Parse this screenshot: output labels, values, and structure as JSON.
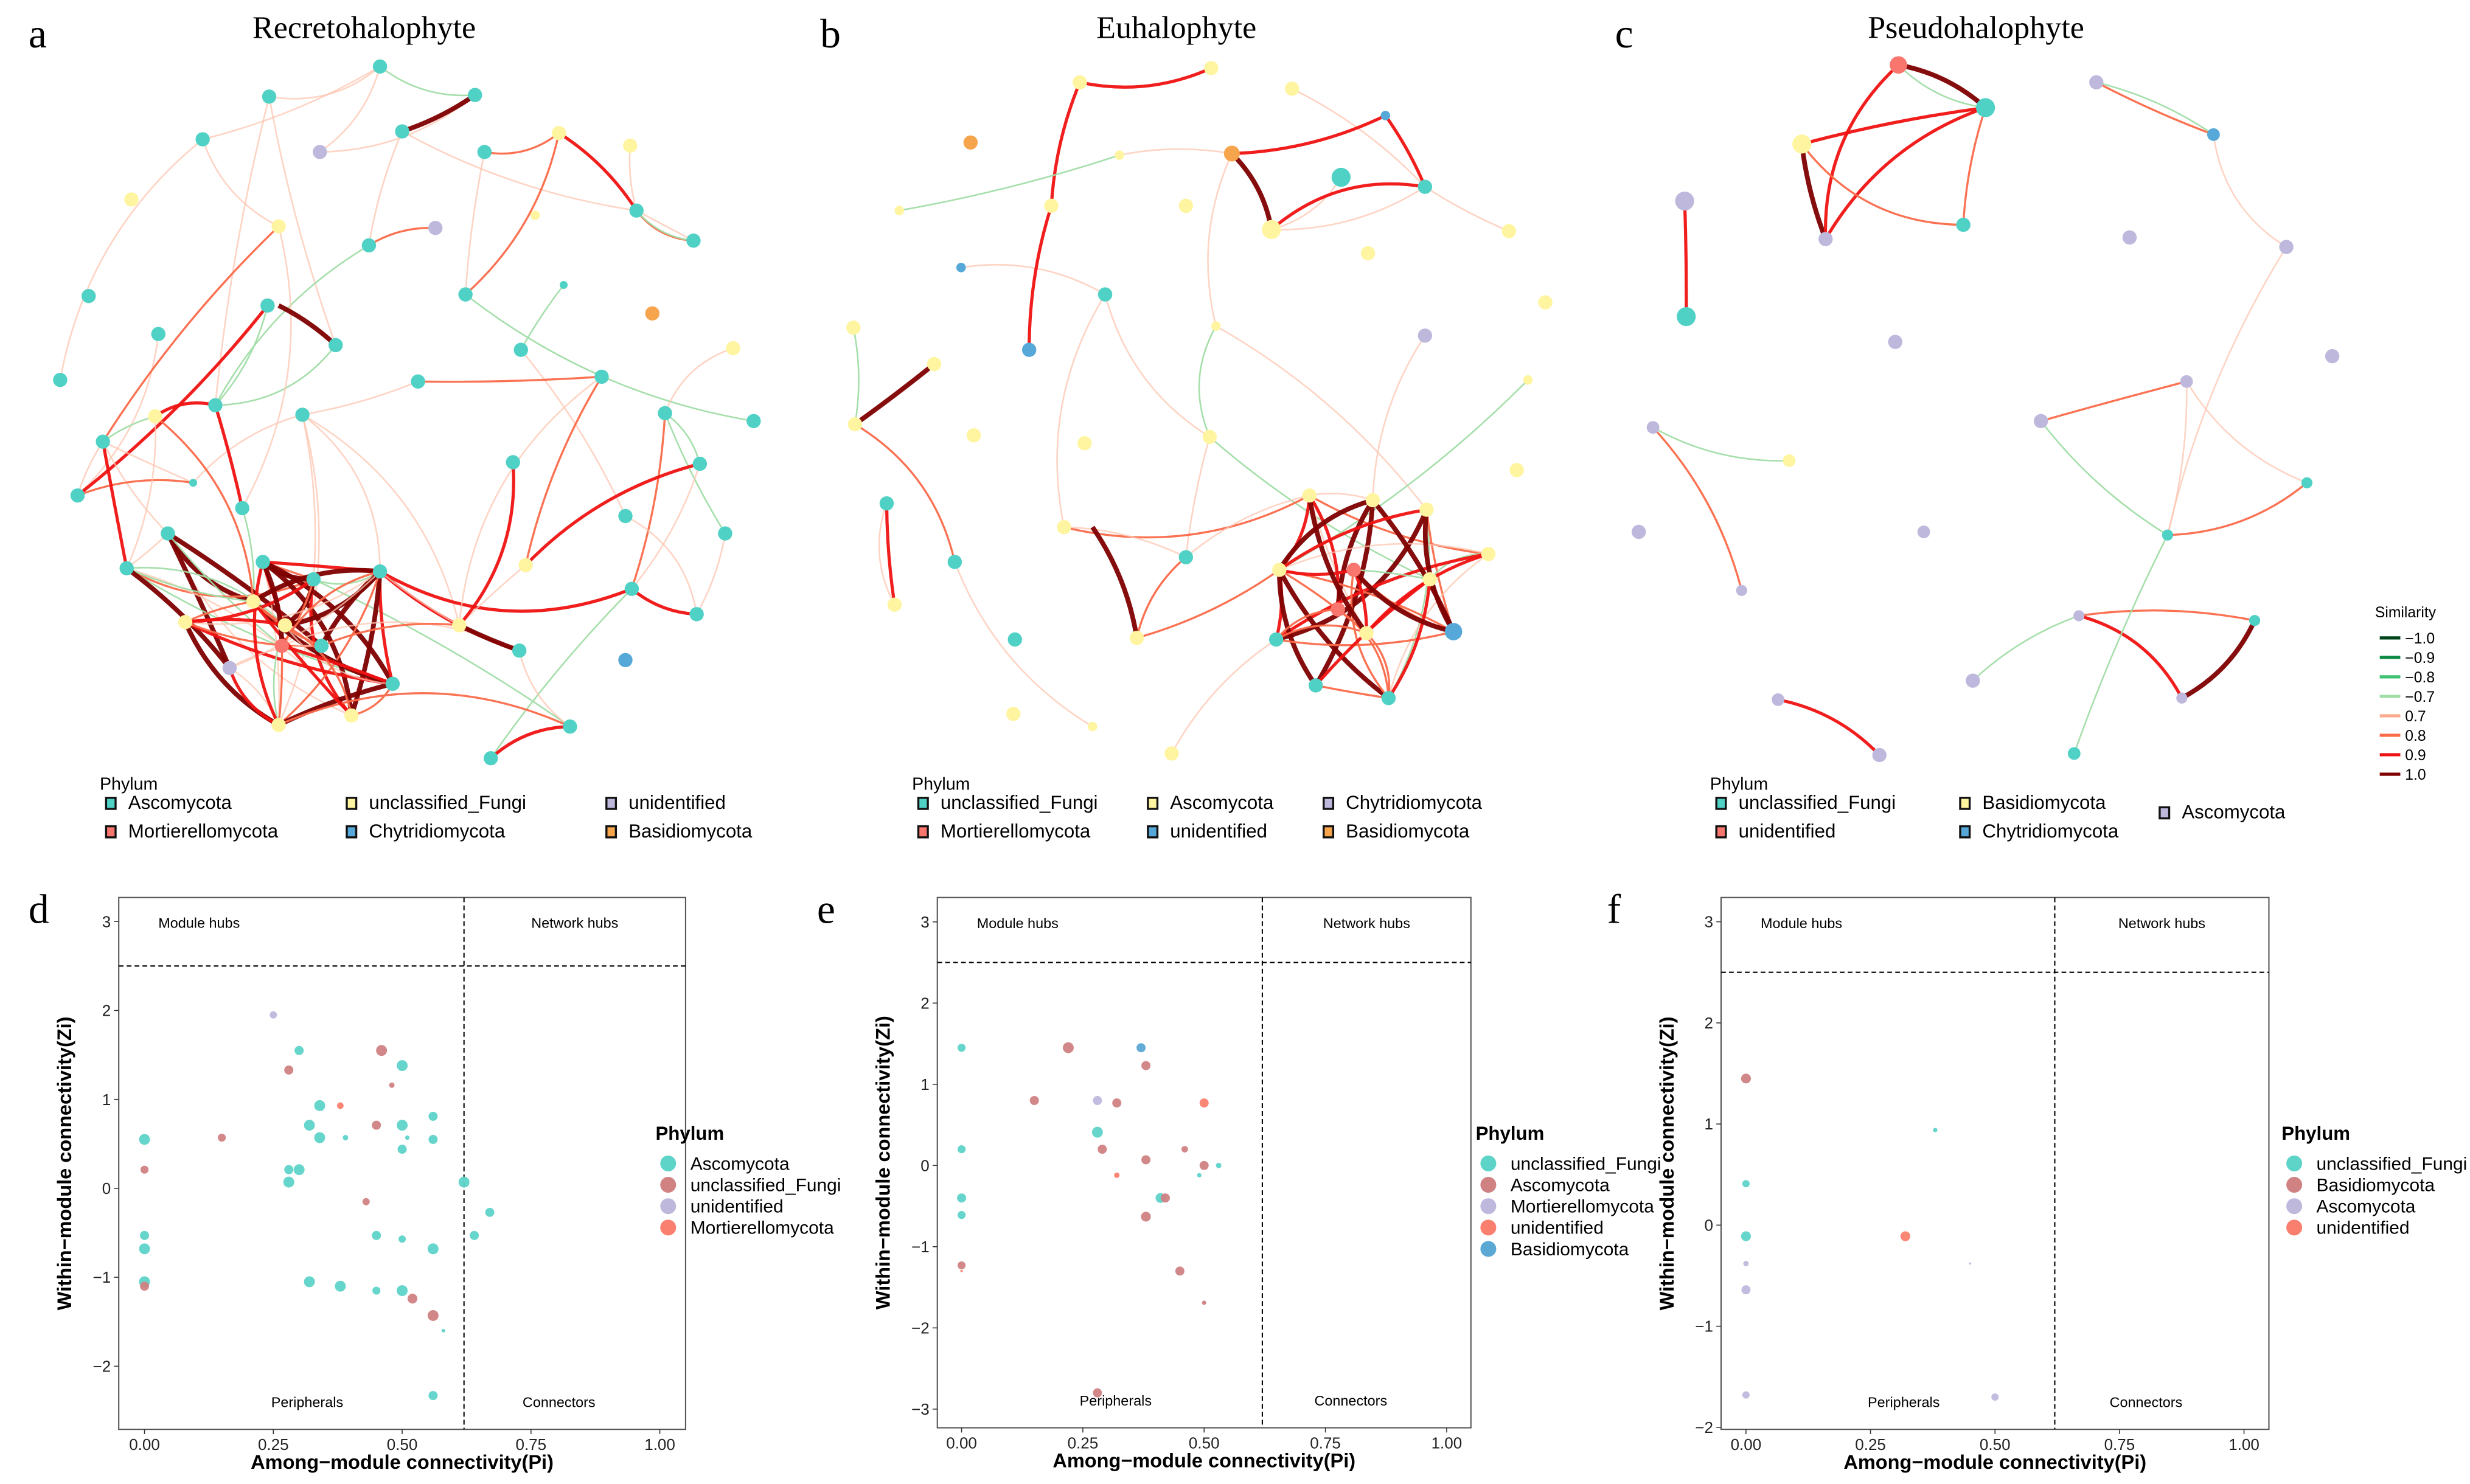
{
  "panels": [
    {
      "letter": "a",
      "title": "Recretohalophyte",
      "legend_title": "Phylum",
      "legend": [
        {
          "label": "Ascomycota",
          "color": "#4FD1C5"
        },
        {
          "label": "Mortierellomycota",
          "color": "#F8766D"
        },
        {
          "label": "unclassified_Fungi",
          "color": "#FFF5A0"
        },
        {
          "label": "Chytridiomycota",
          "color": "#56A8D8"
        },
        {
          "label": "unidentified",
          "color": "#BFB8DD"
        },
        {
          "label": "Basidiomycota",
          "color": "#F6A54D"
        }
      ]
    },
    {
      "letter": "b",
      "title": "Euhalophyte",
      "legend_title": "Phylum",
      "legend": [
        {
          "label": "unclassified_Fungi",
          "color": "#4FD1C5"
        },
        {
          "label": "Mortierellomycota",
          "color": "#F8766D"
        },
        {
          "label": "Ascomycota",
          "color": "#FFF5A0"
        },
        {
          "label": "unidentified",
          "color": "#56A8D8"
        },
        {
          "label": "Chytridiomycota",
          "color": "#BFB8DD"
        },
        {
          "label": "Basidiomycota",
          "color": "#F6A54D"
        }
      ]
    },
    {
      "letter": "c",
      "title": "Pseudohalophyte",
      "legend_title": "Phylum",
      "legend": [
        {
          "label": "unclassified_Fungi",
          "color": "#4FD1C5"
        },
        {
          "label": "unidentified",
          "color": "#F8766D"
        },
        {
          "label": "Basidiomycota",
          "color": "#FFF5A0"
        },
        {
          "label": "Chytridiomycota",
          "color": "#56A8D8"
        },
        {
          "label": "Ascomycota",
          "color": "#BFB8DD"
        }
      ]
    }
  ],
  "similarity_legend": {
    "title": "Similarity",
    "items": [
      {
        "label": "−1.0",
        "color": "#00441B"
      },
      {
        "label": "−0.9",
        "color": "#0A8A44"
      },
      {
        "label": "−0.8",
        "color": "#3CC271"
      },
      {
        "label": "−0.7",
        "color": "#A1DDA6"
      },
      {
        "label": "0.7",
        "color": "#FCAA8E"
      },
      {
        "label": "0.8",
        "color": "#FB6A4A"
      },
      {
        "label": "0.9",
        "color": "#F01212"
      },
      {
        "label": "1.0",
        "color": "#7F0000"
      }
    ]
  },
  "chart_data": [
    {
      "type": "scatter",
      "letter": "d",
      "xlabel": "Among−module connectivity(Pi)",
      "ylabel": "Within−module connectivity(Zi)",
      "xlim": [
        -0.05,
        1.05
      ],
      "ylim": [
        -2.71,
        3.27
      ],
      "xticks": [
        {
          "v": 0,
          "label": "0.00"
        },
        {
          "v": 0.25,
          "label": "0.25"
        },
        {
          "v": 0.5,
          "label": "0.50"
        },
        {
          "v": 0.75,
          "label": "0.75"
        },
        {
          "v": 1,
          "label": "1.00"
        }
      ],
      "yticks": [
        {
          "v": -2,
          "label": "−2"
        },
        {
          "v": -1,
          "label": "−1"
        },
        {
          "v": 0,
          "label": "0"
        },
        {
          "v": 1,
          "label": "1"
        },
        {
          "v": 2,
          "label": "2"
        },
        {
          "v": 3,
          "label": "3"
        }
      ],
      "thresholds": {
        "pi": 0.62,
        "zi": 2.5
      },
      "quadrants": {
        "module_hubs": "Module hubs",
        "network_hubs": "Network hubs",
        "peripherals": "Peripherals",
        "connectors": "Connectors"
      },
      "legend_title": "Phylum",
      "series": [
        {
          "name": "Ascomycota",
          "color": "#5ED3C8",
          "points": [
            [
              0,
              0.55,
              3
            ],
            [
              0,
              -0.53,
              2.5
            ],
            [
              0,
              -0.68,
              3
            ],
            [
              0,
              -1.05,
              3
            ],
            [
              0.3,
              1.55,
              2.5
            ],
            [
              0.5,
              1.38,
              3
            ],
            [
              0.34,
              0.93,
              3
            ],
            [
              0.32,
              0.71,
              3
            ],
            [
              0.34,
              0.57,
              3
            ],
            [
              0.39,
              0.57,
              1.5
            ],
            [
              0.5,
              0.71,
              3
            ],
            [
              0.56,
              0.81,
              2.5
            ],
            [
              0.51,
              0.57,
              1.2
            ],
            [
              0.56,
              0.55,
              2.5
            ],
            [
              0.5,
              0.44,
              2.5
            ],
            [
              0.28,
              0.21,
              2.5
            ],
            [
              0.3,
              0.21,
              3
            ],
            [
              0.28,
              0.07,
              3
            ],
            [
              0.62,
              0.07,
              3
            ],
            [
              0.67,
              -0.27,
              2.5
            ],
            [
              0.64,
              -0.53,
              2.5
            ],
            [
              0.45,
              -0.53,
              2.5
            ],
            [
              0.5,
              -0.57,
              2
            ],
            [
              0.56,
              -0.68,
              3
            ],
            [
              0.32,
              -1.05,
              3
            ],
            [
              0.38,
              -1.1,
              3
            ],
            [
              0.45,
              -1.15,
              2.2
            ],
            [
              0.5,
              -1.15,
              3
            ],
            [
              0.58,
              -1.6,
              1
            ],
            [
              0.56,
              -2.33,
              2.5
            ]
          ]
        },
        {
          "name": "unclassified_Fungi",
          "color": "#D08282",
          "points": [
            [
              0,
              0.21,
              2.2
            ],
            [
              0,
              -1.1,
              2.5
            ],
            [
              0.15,
              0.57,
              2.2
            ],
            [
              0.28,
              1.33,
              2.5
            ],
            [
              0.46,
              1.55,
              3
            ],
            [
              0.48,
              1.16,
              1.5
            ],
            [
              0.45,
              0.71,
              2.5
            ],
            [
              0.43,
              -0.15,
              2
            ],
            [
              0.52,
              -1.24,
              2.7
            ],
            [
              0.56,
              -1.43,
              3
            ]
          ]
        },
        {
          "name": "unidentified",
          "color": "#BFB8DD",
          "points": [
            [
              0.25,
              1.95,
              2
            ]
          ]
        },
        {
          "name": "Mortierellomycota",
          "color": "#FA7F6F",
          "points": [
            [
              0.38,
              0.93,
              1.8
            ]
          ]
        }
      ]
    },
    {
      "type": "scatter",
      "letter": "e",
      "xlabel": "Among−module connectivity(Pi)",
      "ylabel": "Within−module connectivity(Zi)",
      "xlim": [
        -0.05,
        1.05
      ],
      "ylim": [
        -3.23,
        3.3
      ],
      "xticks": [
        {
          "v": 0,
          "label": "0.00"
        },
        {
          "v": 0.25,
          "label": "0.25"
        },
        {
          "v": 0.5,
          "label": "0.50"
        },
        {
          "v": 0.75,
          "label": "0.75"
        },
        {
          "v": 1,
          "label": "1.00"
        }
      ],
      "yticks": [
        {
          "v": -3,
          "label": "−3"
        },
        {
          "v": -2,
          "label": "−2"
        },
        {
          "v": -1,
          "label": "−1"
        },
        {
          "v": 0,
          "label": "0"
        },
        {
          "v": 1,
          "label": "1"
        },
        {
          "v": 2,
          "label": "2"
        },
        {
          "v": 3,
          "label": "3"
        }
      ],
      "thresholds": {
        "pi": 0.62,
        "zi": 2.5
      },
      "quadrants": {
        "module_hubs": "Module hubs",
        "network_hubs": "Network hubs",
        "peripherals": "Peripherals",
        "connectors": "Connectors"
      },
      "legend_title": "Phylum",
      "series": [
        {
          "name": "unclassified_Fungi",
          "color": "#5ED3C8",
          "points": [
            [
              0,
              1.45,
              2.2
            ],
            [
              0,
              0.2,
              2.2
            ],
            [
              0,
              -0.4,
              2.5
            ],
            [
              0,
              -0.61,
              2.2
            ],
            [
              0.28,
              0.41,
              3
            ],
            [
              0.41,
              -0.4,
              2.7
            ],
            [
              0.49,
              -0.12,
              1.2
            ],
            [
              0.53,
              0.0,
              1.5
            ]
          ]
        },
        {
          "name": "Ascomycota",
          "color": "#D08282",
          "points": [
            [
              0.22,
              1.45,
              3
            ],
            [
              0.38,
              1.23,
              2.5
            ],
            [
              0.15,
              0.8,
              2.5
            ],
            [
              0.32,
              0.77,
              2.5
            ],
            [
              0.29,
              0.2,
              2.5
            ],
            [
              0.38,
              0.07,
              2.5
            ],
            [
              0.46,
              0.2,
              1.8
            ],
            [
              0.5,
              0.0,
              2.5
            ],
            [
              0.42,
              -0.4,
              2.5
            ],
            [
              0.38,
              -0.63,
              2.7
            ],
            [
              0,
              -1.23,
              2.2
            ],
            [
              0.45,
              -1.3,
              2.5
            ],
            [
              0.5,
              -1.69,
              1.2
            ],
            [
              0.28,
              -2.8,
              2.5
            ]
          ]
        },
        {
          "name": "Mortierellomycota",
          "color": "#BFB8DD",
          "points": [
            [
              0.28,
              0.8,
              2.5
            ]
          ]
        },
        {
          "name": "unidentified",
          "color": "#FA7F6F",
          "points": [
            [
              0.5,
              0.77,
              2.5
            ],
            [
              0.32,
              -0.12,
              1.5
            ],
            [
              0,
              -1.3,
              0.7
            ]
          ]
        },
        {
          "name": "Basidiomycota",
          "color": "#5BA8D4",
          "points": [
            [
              0.37,
              1.45,
              2.5
            ]
          ]
        }
      ]
    },
    {
      "type": "scatter",
      "letter": "f",
      "xlabel": "Among−module connectivity(Pi)",
      "ylabel": "Within−module connectivity(Zi)",
      "xlim": [
        -0.05,
        1.05
      ],
      "ylim": [
        -2.02,
        3.24
      ],
      "xticks": [
        {
          "v": 0,
          "label": "0.00"
        },
        {
          "v": 0.25,
          "label": "0.25"
        },
        {
          "v": 0.5,
          "label": "0.50"
        },
        {
          "v": 0.75,
          "label": "0.75"
        },
        {
          "v": 1,
          "label": "1.00"
        }
      ],
      "yticks": [
        {
          "v": -2,
          "label": "−2"
        },
        {
          "v": -1,
          "label": "−1"
        },
        {
          "v": 0,
          "label": "0"
        },
        {
          "v": 1,
          "label": "1"
        },
        {
          "v": 2,
          "label": "2"
        },
        {
          "v": 3,
          "label": "3"
        }
      ],
      "thresholds": {
        "pi": 0.62,
        "zi": 2.5
      },
      "quadrants": {
        "module_hubs": "Module hubs",
        "network_hubs": "Network hubs",
        "peripherals": "Peripherals",
        "connectors": "Connectors"
      },
      "legend_title": "Phylum",
      "series": [
        {
          "name": "unclassified_Fungi",
          "color": "#5ED3C8",
          "points": [
            [
              0,
              0.41,
              2
            ],
            [
              0,
              -0.11,
              2.7
            ],
            [
              0.38,
              0.94,
              1.2
            ]
          ]
        },
        {
          "name": "Basidiomycota",
          "color": "#D08282",
          "points": [
            [
              0,
              1.45,
              2.7
            ]
          ]
        },
        {
          "name": "Ascomycota",
          "color": "#BFB8DD",
          "points": [
            [
              0,
              -0.38,
              1.5
            ],
            [
              0,
              -0.64,
              2.5
            ],
            [
              0,
              -1.68,
              2
            ],
            [
              0.5,
              -1.7,
              2
            ],
            [
              0.45,
              -0.38,
              0.6
            ]
          ]
        },
        {
          "name": "unidentified",
          "color": "#FA7F6F",
          "points": [
            [
              0.32,
              -0.11,
              2.7
            ]
          ]
        }
      ]
    }
  ]
}
